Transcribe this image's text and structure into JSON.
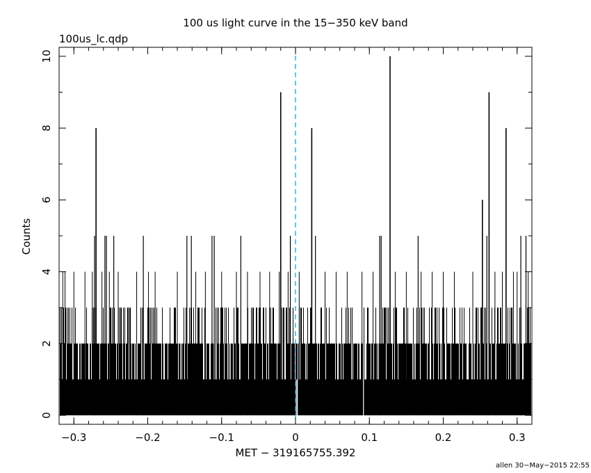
{
  "chart_data": {
    "type": "bar",
    "title": "100 us light curve in the 15−350 keV band",
    "subtitle": "100us_lc.qdp",
    "xlabel": "MET − 319165755.392",
    "ylabel": "Counts",
    "footer": "allen 30−May−2015 22:55",
    "xlim": [
      -0.32,
      0.32
    ],
    "ylim": [
      -0.25,
      10.25
    ],
    "x_ticks": [
      -0.3,
      -0.2,
      -0.1,
      0,
      0.1,
      0.2,
      0.3
    ],
    "x_tick_labels": [
      "−0.3",
      "−0.2",
      "−0.1",
      "0",
      "0.1",
      "0.2",
      "0.3"
    ],
    "y_ticks": [
      0,
      2,
      4,
      6,
      8,
      10
    ],
    "y_tick_labels": [
      "0",
      "2",
      "4",
      "6",
      "8",
      "10"
    ],
    "bin_width_s": 0.0001,
    "trigger_time": 0,
    "trigger_line_color": "#00a0c8",
    "bar_color": "#000000",
    "baseline_fill_level": 1,
    "approx_noise_levels": [
      2,
      3
    ],
    "notable_peaks": [
      {
        "x": -0.27,
        "y": 8
      },
      {
        "x": -0.02,
        "y": 9
      },
      {
        "x": 0.022,
        "y": 8
      },
      {
        "x": 0.128,
        "y": 10
      },
      {
        "x": 0.253,
        "y": 6
      },
      {
        "x": 0.262,
        "y": 9
      },
      {
        "x": 0.285,
        "y": 8
      },
      {
        "x": -0.33,
        "y": 4
      }
    ],
    "five_count_bins": [
      -0.272,
      -0.258,
      -0.256,
      -0.246,
      -0.206,
      -0.147,
      -0.141,
      -0.113,
      -0.11,
      -0.074,
      -0.007,
      0.027,
      0.114,
      0.116,
      0.166,
      0.259,
      0.305,
      0.312
    ],
    "four_count_bins": [
      -0.315,
      -0.312,
      -0.3,
      -0.285,
      -0.275,
      -0.262,
      -0.252,
      -0.24,
      -0.215,
      -0.199,
      -0.19,
      -0.16,
      -0.135,
      -0.122,
      -0.1,
      -0.08,
      -0.065,
      -0.048,
      -0.035,
      -0.022,
      -0.01,
      0.005,
      0.04,
      0.055,
      0.07,
      0.09,
      0.105,
      0.135,
      0.15,
      0.17,
      0.185,
      0.2,
      0.215,
      0.24,
      0.27,
      0.28,
      0.295,
      0.3,
      0.315
    ]
  }
}
